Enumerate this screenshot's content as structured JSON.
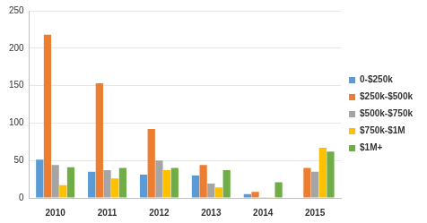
{
  "chart_data": {
    "type": "bar",
    "categories": [
      "2010",
      "2011",
      "2012",
      "2013",
      "2014",
      "2015"
    ],
    "series": [
      {
        "name": "0-$250k",
        "color": "#5b9bd5",
        "values": [
          51,
          35,
          31,
          30,
          5,
          0
        ]
      },
      {
        "name": "$250k-$500k",
        "color": "#ed7d31",
        "values": [
          218,
          153,
          92,
          44,
          8,
          40
        ]
      },
      {
        "name": "$500k-$750k",
        "color": "#a5a5a5",
        "values": [
          44,
          37,
          50,
          19,
          1,
          35
        ]
      },
      {
        "name": "$750k-$1M",
        "color": "#ffc000",
        "values": [
          17,
          26,
          37,
          14,
          1,
          67
        ]
      },
      {
        "name": "$1M+",
        "color": "#70ad47",
        "values": [
          41,
          40,
          40,
          37,
          21,
          62
        ]
      }
    ],
    "ylim": [
      0,
      250
    ],
    "yticks": [
      0,
      50,
      100,
      150,
      200,
      250
    ],
    "grid": true,
    "legend": "right"
  }
}
